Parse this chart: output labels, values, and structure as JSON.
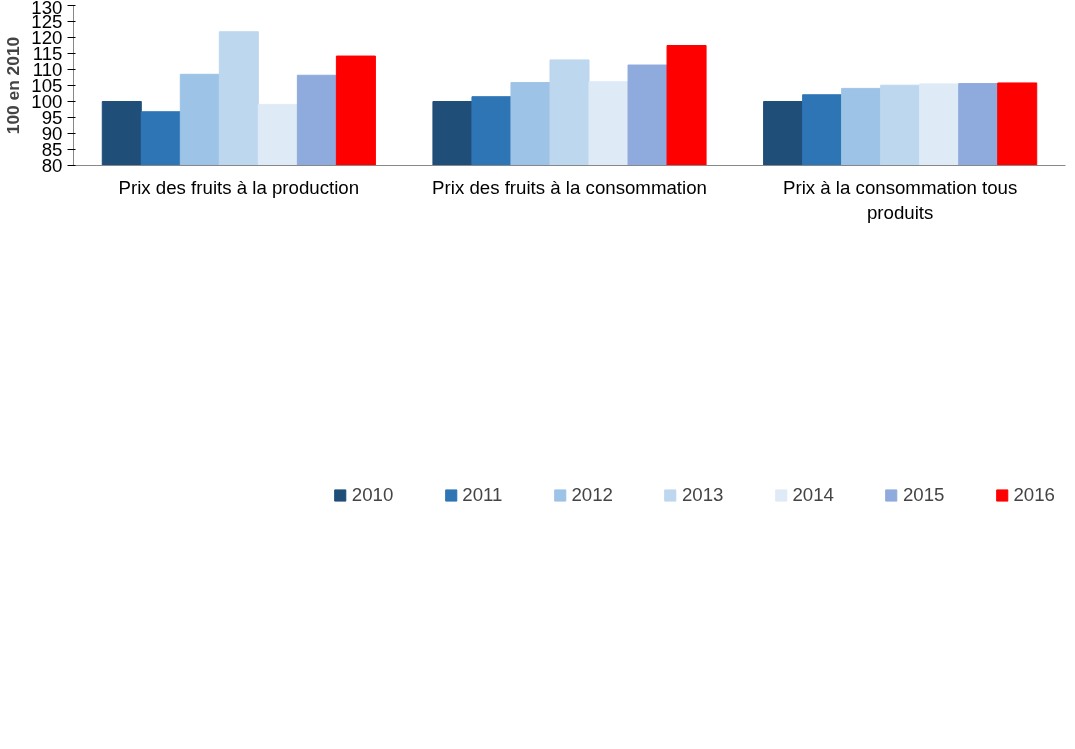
{
  "chart_data": {
    "type": "bar",
    "ylabel": "100 en 2010",
    "categories": [
      "Prix des fruits à la production",
      "Prix des fruits à la consommation",
      "Prix à la consommation tous produits"
    ],
    "series": [
      {
        "name": "2010",
        "color": "#1f4e79",
        "values": [
          100,
          100,
          100
        ]
      },
      {
        "name": "2011",
        "color": "#2e75b6",
        "values": [
          96.8,
          101.5,
          102.1
        ]
      },
      {
        "name": "2012",
        "color": "#9dc3e6",
        "values": [
          108.5,
          105.9,
          104.1
        ]
      },
      {
        "name": "2013",
        "color": "#bdd7ee",
        "values": [
          121.8,
          113.0,
          105.1
        ]
      },
      {
        "name": "2014",
        "color": "#deebf7",
        "values": [
          99.1,
          106.2,
          105.5
        ]
      },
      {
        "name": "2015",
        "color": "#8faadc",
        "values": [
          108.2,
          111.4,
          105.6
        ]
      },
      {
        "name": "2016",
        "color": "#ff0000",
        "values": [
          114.2,
          117.5,
          105.8
        ]
      }
    ],
    "ylim": [
      80,
      130
    ],
    "yticks": [
      80,
      85,
      90,
      95,
      100,
      105,
      110,
      115,
      120,
      125,
      130
    ],
    "grid": false,
    "legend": "bottom"
  }
}
